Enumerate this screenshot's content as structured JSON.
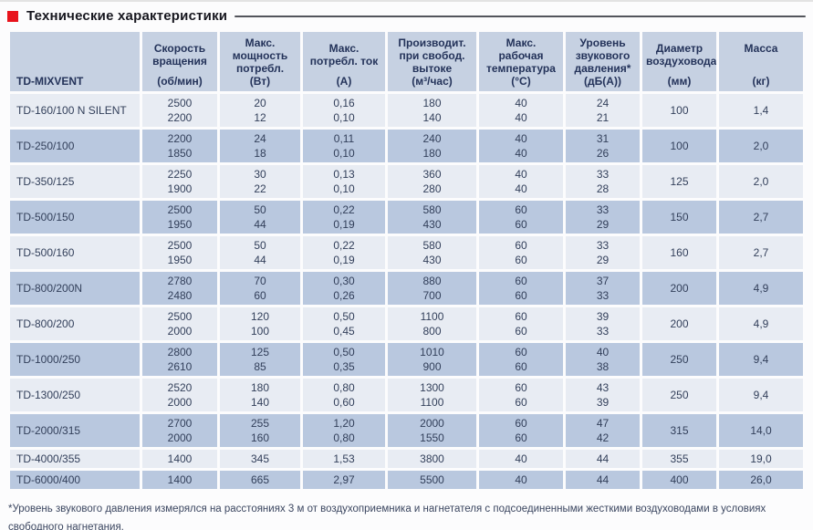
{
  "section": {
    "title": "Технические характеристики"
  },
  "table": {
    "model_header": "TD-MIXVENT",
    "columns": [
      {
        "label": "Скорость вращения",
        "unit": "(об/мин)"
      },
      {
        "label": "Макс. мощность потребл.",
        "unit": "(Вт)"
      },
      {
        "label": "Макс. потребл. ток",
        "unit": "(А)"
      },
      {
        "label": "Производит. при свобод. вытоке",
        "unit": "(м³/час)"
      },
      {
        "label": "Макс. рабочая температура",
        "unit": "(°С)"
      },
      {
        "label": "Уровень звукового давления*",
        "unit": "(дБ(А))"
      },
      {
        "label": "Диаметр воздуховода",
        "unit": "(мм)"
      },
      {
        "label": "Масса",
        "unit": "(кг)"
      }
    ],
    "rows": [
      {
        "model": "TD-160/100 N SILENT",
        "shade": "light",
        "speed": [
          "2500",
          "2200"
        ],
        "power": [
          "20",
          "12"
        ],
        "current": [
          "0,16",
          "0,10"
        ],
        "flow": [
          "180",
          "140"
        ],
        "temp": [
          "40",
          "40"
        ],
        "noise": [
          "24",
          "21"
        ],
        "diameter": "100",
        "mass": "1,4"
      },
      {
        "model": "TD-250/100",
        "shade": "dark",
        "speed": [
          "2200",
          "1850"
        ],
        "power": [
          "24",
          "18"
        ],
        "current": [
          "0,11",
          "0,10"
        ],
        "flow": [
          "240",
          "180"
        ],
        "temp": [
          "40",
          "40"
        ],
        "noise": [
          "31",
          "26"
        ],
        "diameter": "100",
        "mass": "2,0"
      },
      {
        "model": "TD-350/125",
        "shade": "light",
        "speed": [
          "2250",
          "1900"
        ],
        "power": [
          "30",
          "22"
        ],
        "current": [
          "0,13",
          "0,10"
        ],
        "flow": [
          "360",
          "280"
        ],
        "temp": [
          "40",
          "40"
        ],
        "noise": [
          "33",
          "28"
        ],
        "diameter": "125",
        "mass": "2,0"
      },
      {
        "model": "TD-500/150",
        "shade": "dark",
        "speed": [
          "2500",
          "1950"
        ],
        "power": [
          "50",
          "44"
        ],
        "current": [
          "0,22",
          "0,19"
        ],
        "flow": [
          "580",
          "430"
        ],
        "temp": [
          "60",
          "60"
        ],
        "noise": [
          "33",
          "29"
        ],
        "diameter": "150",
        "mass": "2,7"
      },
      {
        "model": "TD-500/160",
        "shade": "light",
        "speed": [
          "2500",
          "1950"
        ],
        "power": [
          "50",
          "44"
        ],
        "current": [
          "0,22",
          "0,19"
        ],
        "flow": [
          "580",
          "430"
        ],
        "temp": [
          "60",
          "60"
        ],
        "noise": [
          "33",
          "29"
        ],
        "diameter": "160",
        "mass": "2,7"
      },
      {
        "model": "TD-800/200N",
        "shade": "dark",
        "speed": [
          "2780",
          "2480"
        ],
        "power": [
          "70",
          "60"
        ],
        "current": [
          "0,30",
          "0,26"
        ],
        "flow": [
          "880",
          "700"
        ],
        "temp": [
          "60",
          "60"
        ],
        "noise": [
          "37",
          "33"
        ],
        "diameter": "200",
        "mass": "4,9"
      },
      {
        "model": "TD-800/200",
        "shade": "light",
        "speed": [
          "2500",
          "2000"
        ],
        "power": [
          "120",
          "100"
        ],
        "current": [
          "0,50",
          "0,45"
        ],
        "flow": [
          "1100",
          "800"
        ],
        "temp": [
          "60",
          "60"
        ],
        "noise": [
          "39",
          "33"
        ],
        "diameter": "200",
        "mass": "4,9"
      },
      {
        "model": "TD-1000/250",
        "shade": "dark",
        "speed": [
          "2800",
          "2610"
        ],
        "power": [
          "125",
          "85"
        ],
        "current": [
          "0,50",
          "0,35"
        ],
        "flow": [
          "1010",
          "900"
        ],
        "temp": [
          "60",
          "60"
        ],
        "noise": [
          "40",
          "38"
        ],
        "diameter": "250",
        "mass": "9,4"
      },
      {
        "model": "TD-1300/250",
        "shade": "light",
        "speed": [
          "2520",
          "2000"
        ],
        "power": [
          "180",
          "140"
        ],
        "current": [
          "0,80",
          "0,60"
        ],
        "flow": [
          "1300",
          "1100"
        ],
        "temp": [
          "60",
          "60"
        ],
        "noise": [
          "43",
          "39"
        ],
        "diameter": "250",
        "mass": "9,4"
      },
      {
        "model": "TD-2000/315",
        "shade": "dark",
        "speed": [
          "2700",
          "2000"
        ],
        "power": [
          "255",
          "160"
        ],
        "current": [
          "1,20",
          "0,80"
        ],
        "flow": [
          "2000",
          "1550"
        ],
        "temp": [
          "60",
          "60"
        ],
        "noise": [
          "47",
          "42"
        ],
        "diameter": "315",
        "mass": "14,0"
      },
      {
        "model": "TD-4000/355",
        "shade": "light",
        "speed": [
          "1400"
        ],
        "power": [
          "345"
        ],
        "current": [
          "1,53"
        ],
        "flow": [
          "3800"
        ],
        "temp": [
          "40"
        ],
        "noise": [
          "44"
        ],
        "diameter": "355",
        "mass": "19,0"
      },
      {
        "model": "TD-6000/400",
        "shade": "dark",
        "speed": [
          "1400"
        ],
        "power": [
          "665"
        ],
        "current": [
          "2,97"
        ],
        "flow": [
          "5500"
        ],
        "temp": [
          "40"
        ],
        "noise": [
          "44"
        ],
        "diameter": "400",
        "mass": "26,0"
      }
    ]
  },
  "footnote": "*Уровень звукового давления измерялся на расстояниях 3 м от воздухоприемника и нагнетателя с подсоединенными жесткими воздуховодами в условиях свободного нагнетания.",
  "colors": {
    "accent_red": "#e8131c",
    "header_bg": "#c6d1e2",
    "row_light": "#e8ecf3",
    "row_dark": "#b9c8df",
    "text": "#323f5a"
  }
}
